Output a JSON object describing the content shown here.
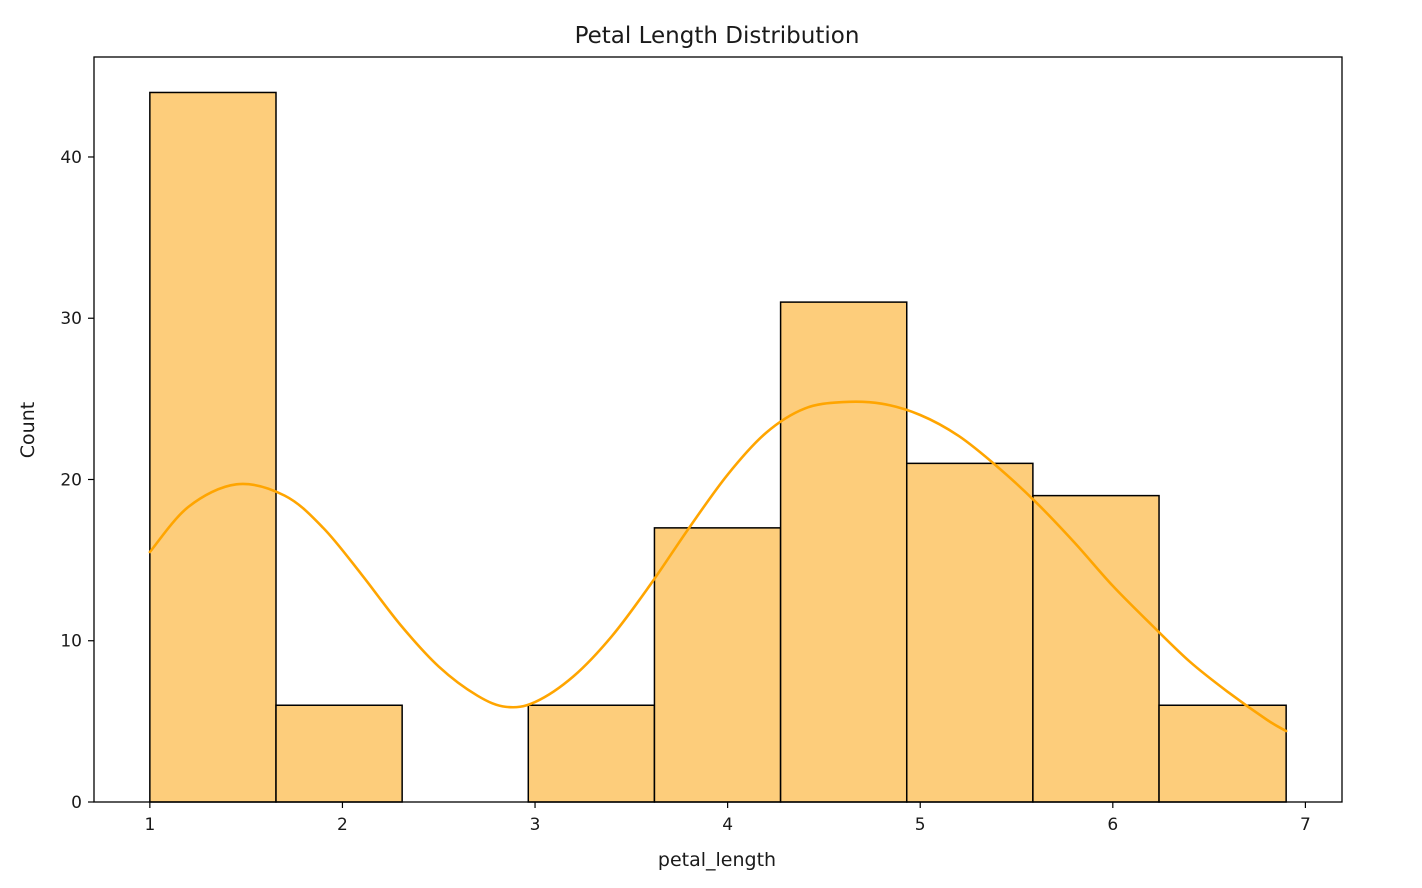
{
  "chart_data": {
    "type": "bar",
    "title": "Petal Length Distribution",
    "xlabel": "petal_length",
    "ylabel": "Count",
    "bin_edges": [
      1.0,
      1.655,
      2.31,
      2.965,
      3.62,
      4.275,
      4.93,
      5.585,
      6.24,
      6.9
    ],
    "values": [
      44,
      6,
      0,
      6,
      17,
      31,
      21,
      19,
      6
    ],
    "xlim": [
      0.71,
      7.19
    ],
    "ylim": [
      0,
      46.2
    ],
    "xticks": [
      1,
      2,
      3,
      4,
      5,
      6,
      7
    ],
    "yticks": [
      0,
      10,
      20,
      30,
      40
    ],
    "kde": {
      "x": [
        1.0,
        1.2,
        1.45,
        1.7,
        1.9,
        2.1,
        2.3,
        2.5,
        2.7,
        2.85,
        3.0,
        3.2,
        3.4,
        3.6,
        3.8,
        4.0,
        4.2,
        4.4,
        4.6,
        4.8,
        5.0,
        5.2,
        5.4,
        5.6,
        5.8,
        6.0,
        6.2,
        6.4,
        6.6,
        6.8,
        6.9
      ],
      "y": [
        15.5,
        18.3,
        19.7,
        19.0,
        17.0,
        14.1,
        11.0,
        8.4,
        6.6,
        5.9,
        6.2,
        7.8,
        10.3,
        13.5,
        17.0,
        20.3,
        22.9,
        24.4,
        24.8,
        24.7,
        24.0,
        22.7,
        20.8,
        18.6,
        16.1,
        13.4,
        11.0,
        8.7,
        6.8,
        5.1,
        4.4
      ]
    },
    "grid": false,
    "legend": "none",
    "bar_color": "#fdcd7b",
    "bar_edge_color": "#000000",
    "kde_color": "#ffa500"
  }
}
